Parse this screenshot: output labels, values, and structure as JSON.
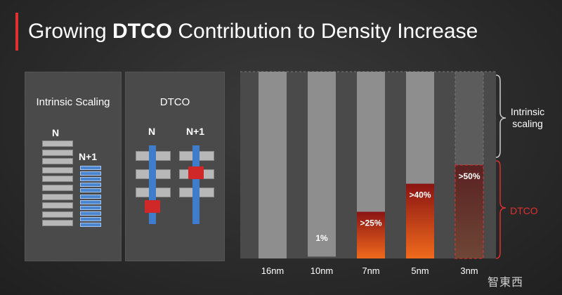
{
  "header": {
    "title_pre": "Growing ",
    "title_bold": "DTCO",
    "title_post": " Contribution to Density Increase"
  },
  "left_panel": {
    "title": "Intrinsic Scaling",
    "label_n": "N",
    "label_n1": "N+1"
  },
  "mid_panel": {
    "title": "DTCO",
    "label_n": "N",
    "label_n1": "N+1"
  },
  "chart_data": {
    "type": "bar",
    "categories": [
      "16nm",
      "10nm",
      "7nm",
      "5nm",
      "3nm"
    ],
    "series": [
      {
        "name": "DTCO",
        "values": [
          0,
          1,
          25,
          40,
          50
        ]
      },
      {
        "name": "Intrinsic scaling",
        "values": [
          100,
          99,
          75,
          60,
          50
        ]
      }
    ],
    "data_labels": [
      "",
      "1%",
      ">25%",
      ">40%",
      ">50%"
    ],
    "annotations": {
      "intrinsic": "Intrinsic scaling",
      "dtco": "DTCO"
    },
    "ylim": [
      0,
      100
    ],
    "colors": {
      "grey_bar": "#8e8e8e",
      "dtco_top": "#8a1414",
      "dtco_bottom": "#f06a1c",
      "accent": "#e03030"
    }
  },
  "watermark": "智東西"
}
